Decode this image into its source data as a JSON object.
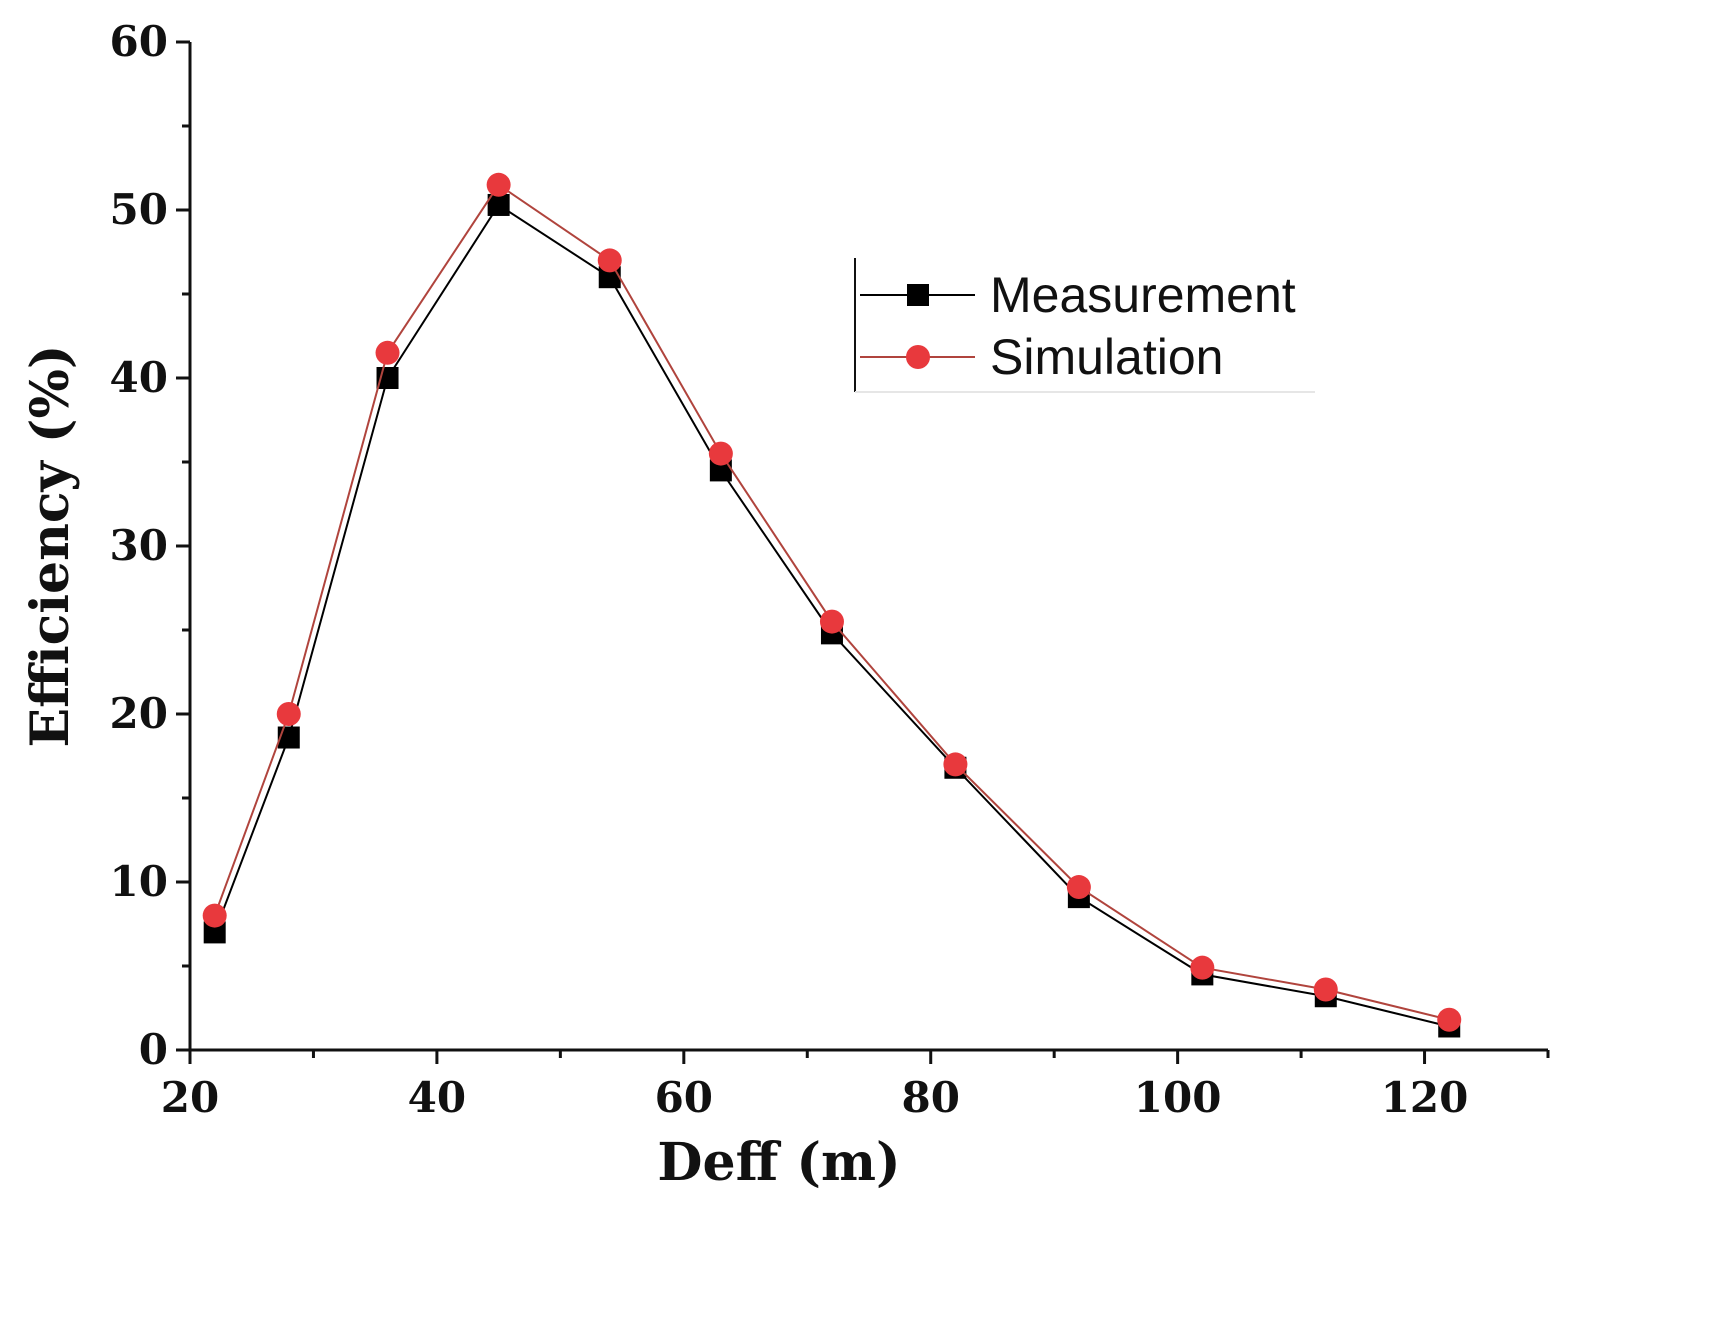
{
  "chart_data": {
    "type": "line",
    "title": "",
    "xlabel": "Deff (m)",
    "ylabel": "Efficiency (%)",
    "xlim": [
      20,
      130
    ],
    "ylim": [
      0,
      60
    ],
    "x_ticks": [
      20,
      40,
      60,
      80,
      100,
      120
    ],
    "x_tick_labels": [
      "20",
      "40",
      "60",
      "80",
      "100",
      "120"
    ],
    "y_ticks": [
      0,
      10,
      20,
      30,
      40,
      50,
      60
    ],
    "y_tick_labels": [
      "0",
      "10",
      "20",
      "30",
      "40",
      "50",
      "60"
    ],
    "grid": false,
    "legend_position": "top-right",
    "x": [
      22,
      28,
      36,
      45,
      54,
      63,
      72,
      82,
      92,
      102,
      112,
      122
    ],
    "series": [
      {
        "name": "Measurement",
        "marker": "square",
        "color": "#000000",
        "values": [
          7.0,
          18.6,
          40.0,
          50.3,
          46.0,
          34.5,
          24.8,
          16.8,
          9.1,
          4.5,
          3.2,
          1.4
        ]
      },
      {
        "name": "Simulation",
        "marker": "circle",
        "color": "#e8393d",
        "line_color": "#b0443d",
        "values": [
          8.0,
          20.0,
          41.5,
          51.5,
          47.0,
          35.5,
          25.5,
          17.0,
          9.7,
          4.9,
          3.6,
          1.8
        ]
      }
    ]
  }
}
